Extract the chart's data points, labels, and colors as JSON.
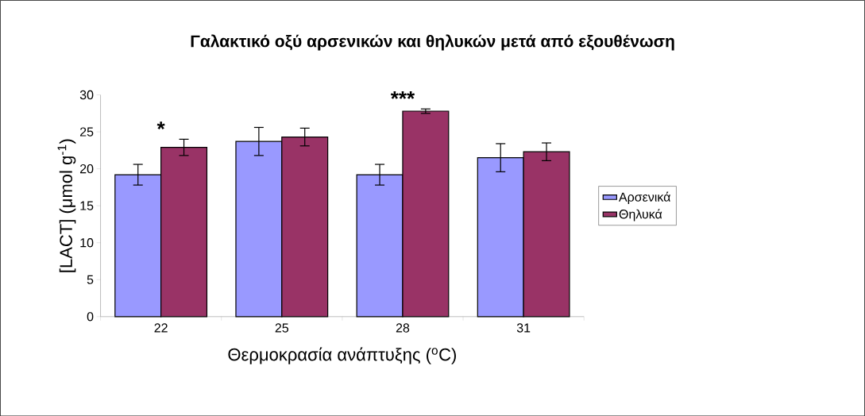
{
  "chart_data": {
    "type": "bar",
    "title": "Γαλακτικό οξύ αρσενικών και θηλυκών μετά από εξουθένωση",
    "xlabel": "Θερμοκρασία ανάπτυξης ($^{o}$C)",
    "ylabel": "[LACT] (μmol g$^{-1}$)",
    "categories": [
      "22",
      "25",
      "28",
      "31"
    ],
    "series": [
      {
        "name": "Αρσενικά",
        "color": "#9999ff",
        "values": [
          19.2,
          23.7,
          19.2,
          21.5
        ],
        "errors": [
          1.4,
          1.9,
          1.4,
          1.9
        ]
      },
      {
        "name": "Θηλυκά",
        "color": "#993366",
        "values": [
          22.9,
          24.3,
          27.8,
          22.3
        ],
        "errors": [
          1.1,
          1.2,
          0.3,
          1.2
        ]
      }
    ],
    "ylim": [
      0,
      30
    ],
    "yticks": [
      0,
      5,
      10,
      15,
      20,
      25,
      30
    ],
    "legend": "right",
    "annotations": [
      "*",
      "***"
    ]
  }
}
